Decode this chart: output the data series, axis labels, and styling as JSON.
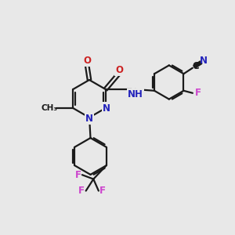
{
  "bg_color": "#e8e8e8",
  "bond_color": "#1a1a1a",
  "N_color": "#2222bb",
  "O_color": "#cc2222",
  "F_color": "#cc44cc",
  "C_color": "#1a1a1a",
  "line_width": 1.6,
  "font_size": 8.5,
  "fig_size": [
    3.0,
    3.0
  ],
  "dpi": 100,
  "xlim": [
    0,
    10
  ],
  "ylim": [
    0,
    10
  ]
}
